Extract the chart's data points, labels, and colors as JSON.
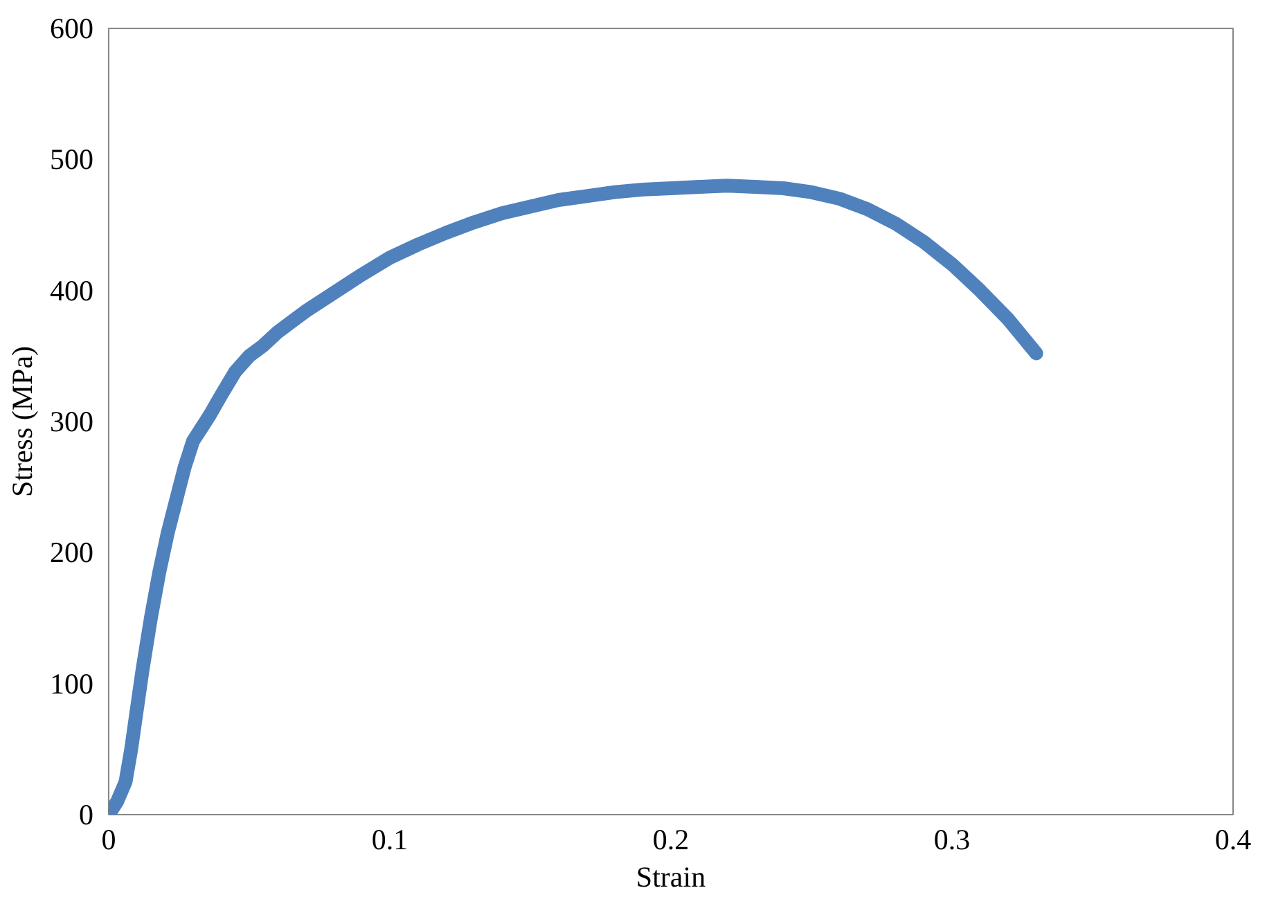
{
  "chart_data": {
    "type": "line",
    "xlabel": "Strain",
    "ylabel": "Stress (MPa)",
    "xlim": [
      0,
      0.4
    ],
    "ylim": [
      0,
      600
    ],
    "xticks": [
      0,
      0.1,
      0.2,
      0.3,
      0.4
    ],
    "yticks": [
      0,
      100,
      200,
      300,
      400,
      500,
      600
    ],
    "grid": false,
    "line_style": "solid",
    "series": [
      {
        "color": "#4f81bd",
        "x": [
          0,
          0.003,
          0.006,
          0.008,
          0.01,
          0.012,
          0.015,
          0.018,
          0.021,
          0.024,
          0.027,
          0.03,
          0.033,
          0.036,
          0.04,
          0.045,
          0.05,
          0.055,
          0.06,
          0.065,
          0.07,
          0.08,
          0.09,
          0.1,
          0.11,
          0.12,
          0.13,
          0.14,
          0.15,
          0.16,
          0.17,
          0.18,
          0.19,
          0.2,
          0.21,
          0.22,
          0.23,
          0.24,
          0.25,
          0.26,
          0.27,
          0.28,
          0.29,
          0.3,
          0.31,
          0.32,
          0.33
        ],
        "values": [
          0,
          10,
          25,
          50,
          80,
          110,
          150,
          185,
          215,
          240,
          265,
          285,
          295,
          305,
          320,
          338,
          350,
          358,
          368,
          376,
          384,
          398,
          412,
          425,
          435,
          444,
          452,
          459,
          464,
          469,
          472,
          475,
          477,
          478,
          479,
          480,
          479,
          478,
          475,
          470,
          462,
          451,
          437,
          420,
          400,
          378,
          352
        ]
      }
    ]
  }
}
